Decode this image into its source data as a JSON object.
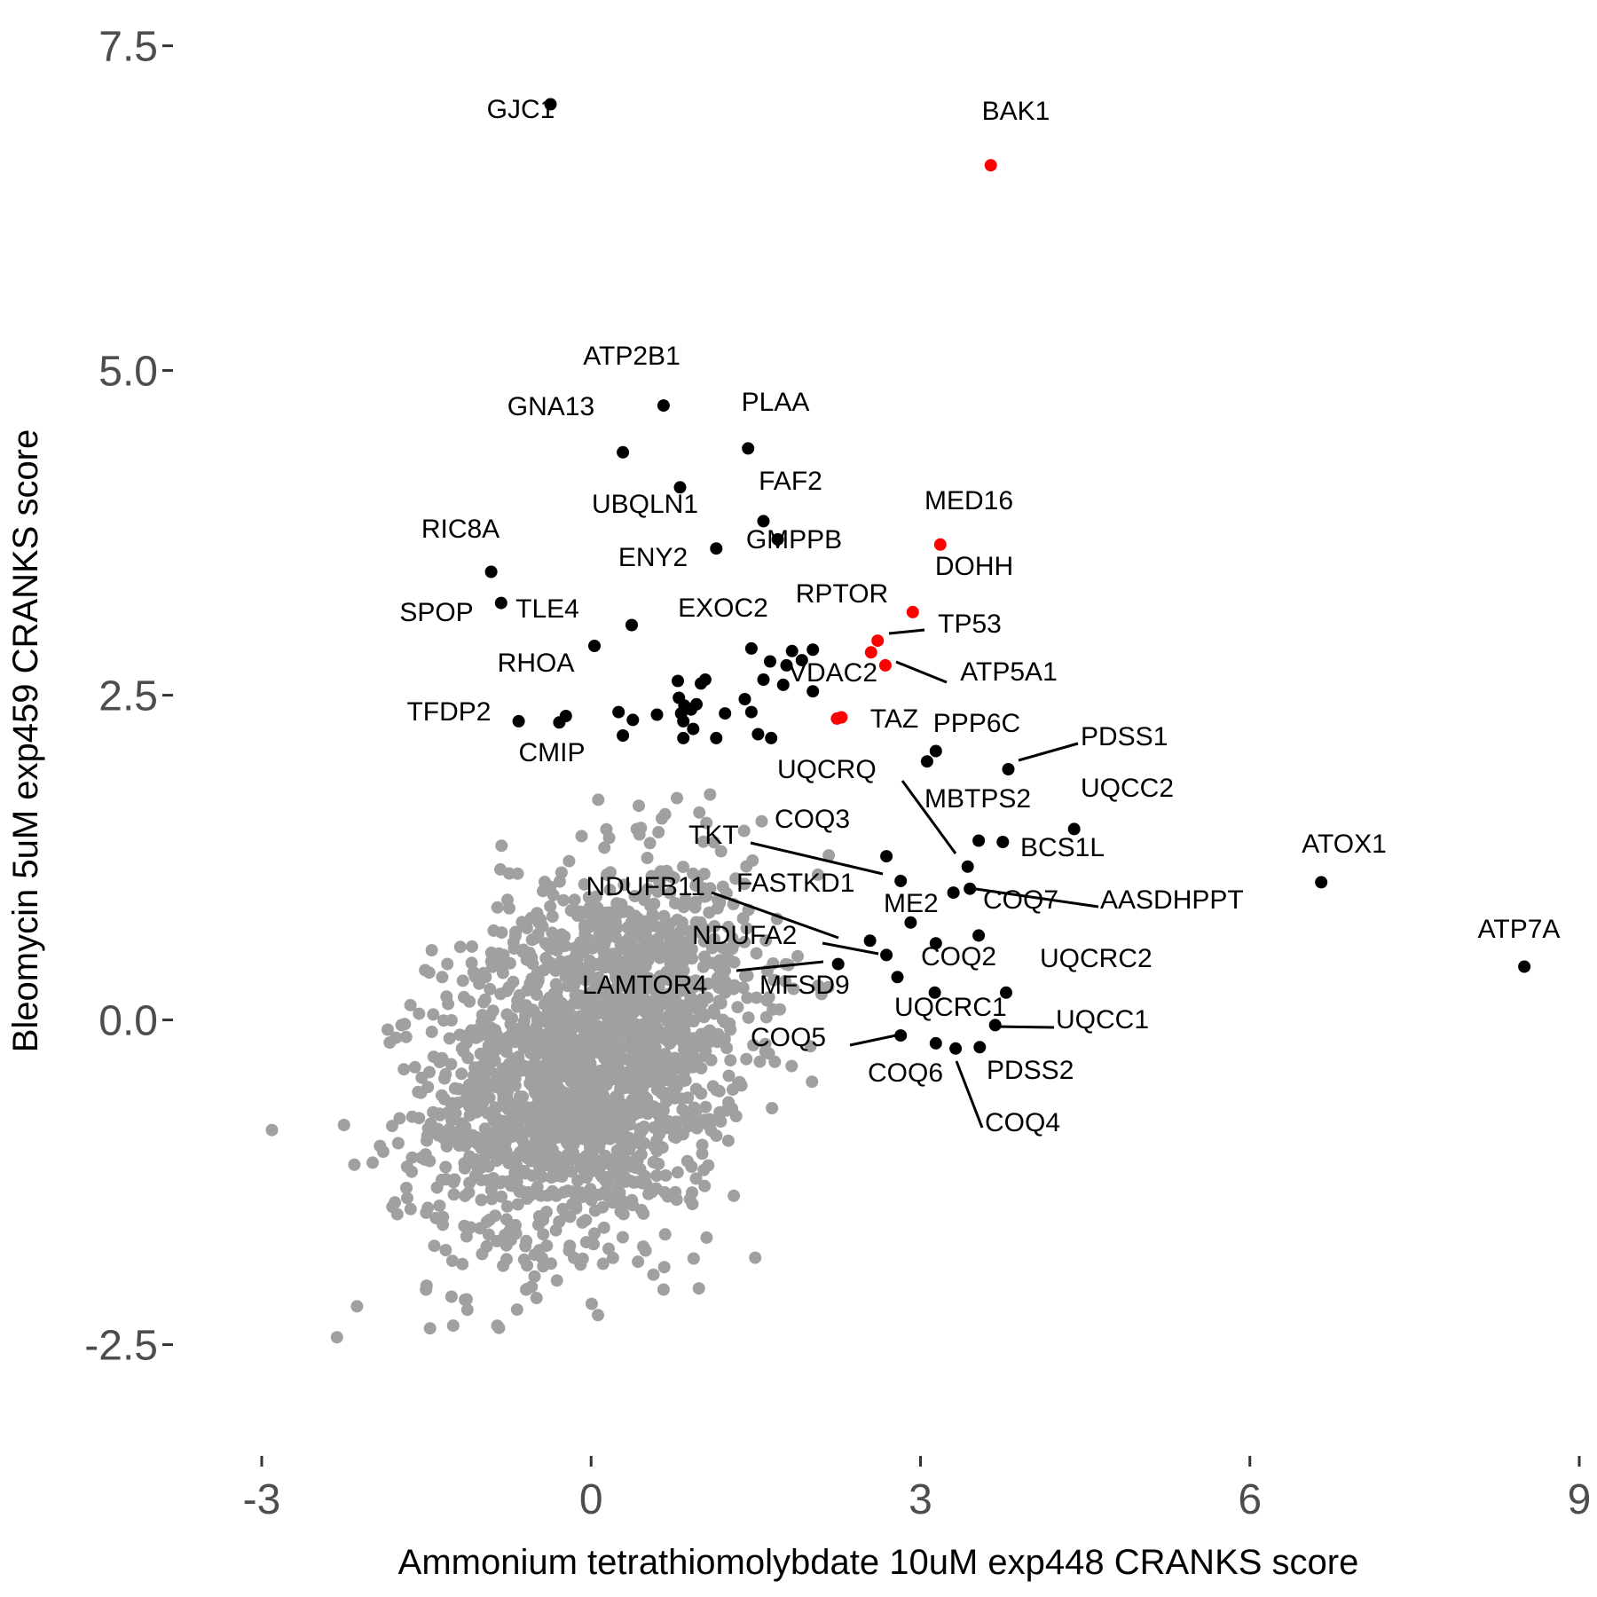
{
  "chart_data": {
    "type": "scatter",
    "xlabel": "Ammonium tetrathiomolybdate 10uM exp448 CRANKS score",
    "ylabel": "Bleomycin 5uM exp459 CRANKS score",
    "xlim": [
      -3.8,
      9.0
    ],
    "ylim": [
      -3.35,
      7.75
    ],
    "x_ticks": [
      -3,
      0,
      3,
      6,
      9
    ],
    "x_tick_labels": [
      "-3",
      "0",
      "3",
      "6",
      "9"
    ],
    "y_ticks": [
      -2.5,
      0.0,
      2.5,
      5.0,
      7.5
    ],
    "y_tick_labels": [
      "-2.5",
      "0.0",
      "2.5",
      "5.0",
      "7.5"
    ],
    "grid": false,
    "legend": "none",
    "colors": {
      "background_points": "#a0a0a0",
      "hit": "#000000",
      "highlight": "#ff0000",
      "tick": "#4d4d4d",
      "axis_title": "#000000"
    },
    "background_cloud": {
      "description_count": 2000,
      "center": [
        0.0,
        -0.3
      ],
      "x_range": [
        -3.2,
        2.2
      ],
      "y_range": [
        -2.9,
        2.0
      ],
      "color": "#a0a0a0"
    },
    "labeled_points": [
      {
        "label": "GJC1",
        "x": -0.37,
        "y": 7.05,
        "color": "#000000"
      },
      {
        "label": "BAK1",
        "x": 3.64,
        "y": 6.58,
        "color": "#ff0000"
      },
      {
        "label": "ATP2B1",
        "x": 0.66,
        "y": 4.73,
        "color": "#000000"
      },
      {
        "label": "GNA13",
        "x": 0.29,
        "y": 4.37,
        "color": "#000000"
      },
      {
        "label": "PLAA",
        "x": 1.43,
        "y": 4.4,
        "color": "#000000"
      },
      {
        "label": "UBQLN1",
        "x": 0.81,
        "y": 4.1,
        "color": "#000000"
      },
      {
        "label": "FAF2",
        "x": 1.57,
        "y": 3.84,
        "color": "#000000"
      },
      {
        "label": "MED16",
        "x": 3.18,
        "y": 3.66,
        "color": "#ff0000"
      },
      {
        "label": "RIC8A",
        "x": -0.91,
        "y": 3.45,
        "color": "#000000"
      },
      {
        "label": "GMPPB",
        "x": 1.7,
        "y": 3.7,
        "color": "#000000"
      },
      {
        "label": "ENY2",
        "x": 1.14,
        "y": 3.63,
        "color": "#000000"
      },
      {
        "label": "DOHH",
        "x": 2.93,
        "y": 3.14,
        "color": "#ff0000"
      },
      {
        "label": "SPOP",
        "x": -0.82,
        "y": 3.21,
        "color": "#000000"
      },
      {
        "label": "TLE4",
        "x": 0.37,
        "y": 3.04,
        "color": "#000000"
      },
      {
        "label": "RPTOR",
        "x": 2.61,
        "y": 2.92,
        "color": "#ff0000"
      },
      {
        "label": "EXOC2",
        "x": 1.46,
        "y": 2.86,
        "color": "#000000"
      },
      {
        "label": "TP53",
        "x": 2.55,
        "y": 2.83,
        "color": "#ff0000"
      },
      {
        "label": "ATP5A1",
        "x": 2.68,
        "y": 2.73,
        "color": "#ff0000"
      },
      {
        "label": "RHOA",
        "x": 0.03,
        "y": 2.88,
        "color": "#000000"
      },
      {
        "label": "VDAC2",
        "x": 2.28,
        "y": 2.33,
        "color": "#ff0000"
      },
      {
        "label": "TFDP2",
        "x": -0.66,
        "y": 2.3,
        "color": "#000000"
      },
      {
        "label": "CMIP",
        "x": -0.23,
        "y": 2.34,
        "color": "#000000"
      },
      {
        "label": "TAZ",
        "x": 3.14,
        "y": 2.07,
        "color": "#000000"
      },
      {
        "label": "PPP6C",
        "x": 3.06,
        "y": 1.99,
        "color": "#000000"
      },
      {
        "label": "PDSS1",
        "x": 3.8,
        "y": 1.93,
        "color": "#000000"
      },
      {
        "label": "UQCRQ",
        "x": 3.43,
        "y": 1.18,
        "color": "#000000"
      },
      {
        "label": "UQCC2",
        "x": 4.4,
        "y": 1.47,
        "color": "#000000"
      },
      {
        "label": "MBTPS2",
        "x": 3.53,
        "y": 1.38,
        "color": "#000000"
      },
      {
        "label": "BCS1L",
        "x": 3.75,
        "y": 1.37,
        "color": "#000000"
      },
      {
        "label": "COQ3",
        "x": 2.69,
        "y": 1.26,
        "color": "#000000"
      },
      {
        "label": "TKT",
        "x": 2.82,
        "y": 1.07,
        "color": "#000000"
      },
      {
        "label": "ATOX1",
        "x": 6.65,
        "y": 1.06,
        "color": "#000000"
      },
      {
        "label": "COQ7",
        "x": 3.3,
        "y": 0.98,
        "color": "#000000"
      },
      {
        "label": "AASDHPPT",
        "x": 3.45,
        "y": 1.01,
        "color": "#000000"
      },
      {
        "label": "FASTKD1",
        "x": 2.91,
        "y": 0.75,
        "color": "#000000"
      },
      {
        "label": "NDUFB11",
        "x": 2.54,
        "y": 0.61,
        "color": "#000000"
      },
      {
        "label": "ME2",
        "x": 3.14,
        "y": 0.59,
        "color": "#000000"
      },
      {
        "label": "ATP7A",
        "x": 8.5,
        "y": 0.41,
        "color": "#000000"
      },
      {
        "label": "NDUFA2",
        "x": 2.69,
        "y": 0.5,
        "color": "#000000"
      },
      {
        "label": "COQ2",
        "x": 3.53,
        "y": 0.65,
        "color": "#000000"
      },
      {
        "label": "UQCRC2",
        "x": 3.78,
        "y": 0.21,
        "color": "#000000"
      },
      {
        "label": "LAMTOR4",
        "x": 2.25,
        "y": 0.43,
        "color": "#000000"
      },
      {
        "label": "MFSD9",
        "x": 2.79,
        "y": 0.33,
        "color": "#000000"
      },
      {
        "label": "UQCRC1",
        "x": 3.13,
        "y": 0.21,
        "color": "#000000"
      },
      {
        "label": "UQCC1",
        "x": 3.68,
        "y": -0.04,
        "color": "#000000"
      },
      {
        "label": "COQ5",
        "x": 2.82,
        "y": -0.12,
        "color": "#000000"
      },
      {
        "label": "PDSS2",
        "x": 3.54,
        "y": -0.21,
        "color": "#000000"
      },
      {
        "label": "COQ6",
        "x": 3.14,
        "y": -0.18,
        "color": "#000000"
      },
      {
        "label": "COQ4",
        "x": 3.32,
        "y": -0.22,
        "color": "#000000"
      }
    ],
    "unlabeled_hits": [
      {
        "x": -0.29,
        "y": 2.29,
        "color": "#000000"
      },
      {
        "x": 0.25,
        "y": 2.37,
        "color": "#000000"
      },
      {
        "x": 0.29,
        "y": 2.19,
        "color": "#000000"
      },
      {
        "x": 0.38,
        "y": 2.31,
        "color": "#000000"
      },
      {
        "x": 0.6,
        "y": 2.35,
        "color": "#000000"
      },
      {
        "x": 0.79,
        "y": 2.61,
        "color": "#000000"
      },
      {
        "x": 0.8,
        "y": 2.48,
        "color": "#000000"
      },
      {
        "x": 0.85,
        "y": 2.42,
        "color": "#000000"
      },
      {
        "x": 0.82,
        "y": 2.36,
        "color": "#000000"
      },
      {
        "x": 0.91,
        "y": 2.39,
        "color": "#000000"
      },
      {
        "x": 0.96,
        "y": 2.43,
        "color": "#000000"
      },
      {
        "x": 1.0,
        "y": 2.59,
        "color": "#000000"
      },
      {
        "x": 1.04,
        "y": 2.62,
        "color": "#000000"
      },
      {
        "x": 0.84,
        "y": 2.3,
        "color": "#000000"
      },
      {
        "x": 0.84,
        "y": 2.17,
        "color": "#000000"
      },
      {
        "x": 0.93,
        "y": 2.24,
        "color": "#000000"
      },
      {
        "x": 1.14,
        "y": 2.17,
        "color": "#000000"
      },
      {
        "x": 1.22,
        "y": 2.36,
        "color": "#000000"
      },
      {
        "x": 1.4,
        "y": 2.47,
        "color": "#000000"
      },
      {
        "x": 1.46,
        "y": 2.37,
        "color": "#000000"
      },
      {
        "x": 1.52,
        "y": 2.2,
        "color": "#000000"
      },
      {
        "x": 1.57,
        "y": 2.62,
        "color": "#000000"
      },
      {
        "x": 1.64,
        "y": 2.17,
        "color": "#000000"
      },
      {
        "x": 1.63,
        "y": 2.76,
        "color": "#000000"
      },
      {
        "x": 1.75,
        "y": 2.58,
        "color": "#000000"
      },
      {
        "x": 1.78,
        "y": 2.73,
        "color": "#000000"
      },
      {
        "x": 1.83,
        "y": 2.84,
        "color": "#000000"
      },
      {
        "x": 1.92,
        "y": 2.77,
        "color": "#000000"
      },
      {
        "x": 2.02,
        "y": 2.85,
        "color": "#000000"
      },
      {
        "x": 2.02,
        "y": 2.53,
        "color": "#000000"
      },
      {
        "x": 2.24,
        "y": 2.32,
        "color": "#ff0000"
      }
    ]
  }
}
